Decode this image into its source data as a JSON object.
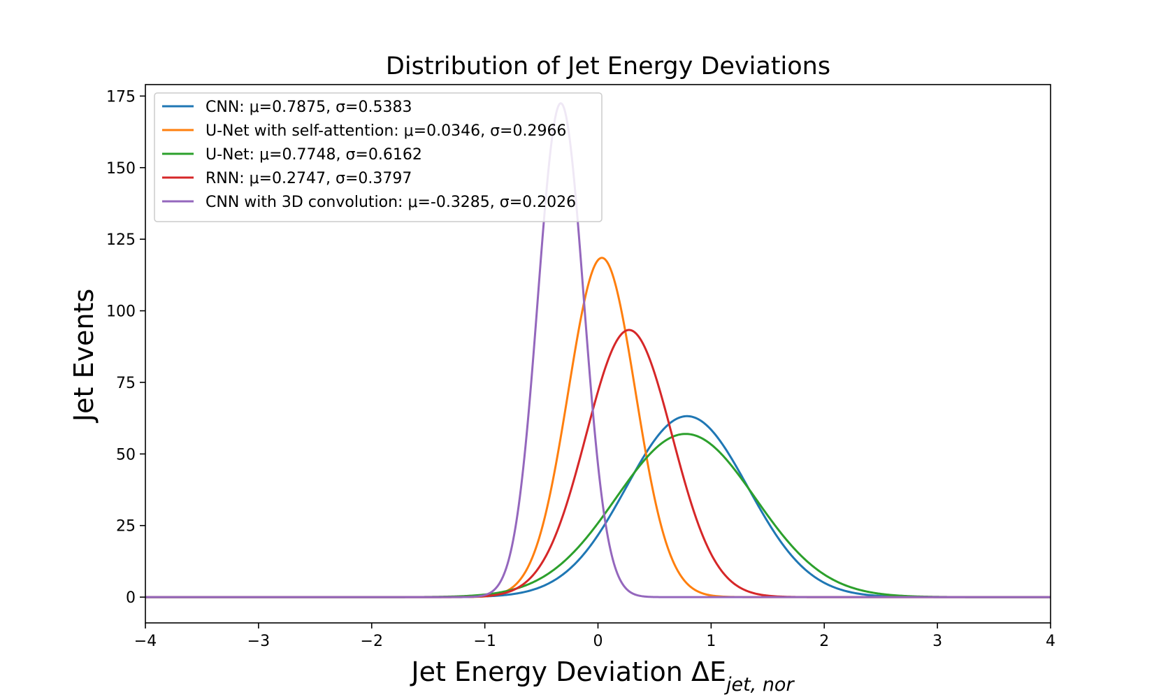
{
  "chart_data": {
    "type": "line",
    "title": "Distribution of Jet Energy Deviations",
    "xlabel": "Jet Energy Deviation ΔE",
    "xlabel_subscript": "jet, nor",
    "ylabel": "Jet Events",
    "xlim": [
      -4,
      4
    ],
    "ylim": [
      -9,
      179
    ],
    "xticks": [
      -4,
      -3,
      -2,
      -1,
      0,
      1,
      2,
      3,
      4
    ],
    "xtick_labels": [
      "−4",
      "−3",
      "−2",
      "−1",
      "0",
      "1",
      "2",
      "3",
      "4"
    ],
    "yticks": [
      0,
      25,
      50,
      75,
      100,
      125,
      150,
      175
    ],
    "ytick_labels": [
      "0",
      "25",
      "50",
      "75",
      "100",
      "125",
      "150",
      "175"
    ],
    "grid": false,
    "legend_position": "top-left",
    "series": [
      {
        "name": "CNN",
        "mu_label": "μ=0.7875",
        "sigma_label": "σ=0.5383",
        "mu": 0.7875,
        "sigma": 0.5383,
        "peak": 63.2,
        "color": "#1f77b4"
      },
      {
        "name": "U-Net with self-attention",
        "mu_label": "μ=0.0346",
        "sigma_label": "σ=0.2966",
        "mu": 0.0346,
        "sigma": 0.2966,
        "peak": 118.5,
        "color": "#ff7f0e"
      },
      {
        "name": "U-Net",
        "mu_label": "μ=0.7748",
        "sigma_label": "σ=0.6162",
        "mu": 0.7748,
        "sigma": 0.6162,
        "peak": 57.0,
        "color": "#2ca02c"
      },
      {
        "name": "RNN",
        "mu_label": "μ=0.2747",
        "sigma_label": "σ=0.3797",
        "mu": 0.2747,
        "sigma": 0.3797,
        "peak": 93.3,
        "color": "#d62728"
      },
      {
        "name": "CNN with 3D convolution",
        "mu_label": "μ=-0.3285",
        "sigma_label": "σ=0.2026",
        "mu": -0.3285,
        "sigma": 0.2026,
        "peak": 172.5,
        "color": "#9467bd"
      }
    ]
  }
}
